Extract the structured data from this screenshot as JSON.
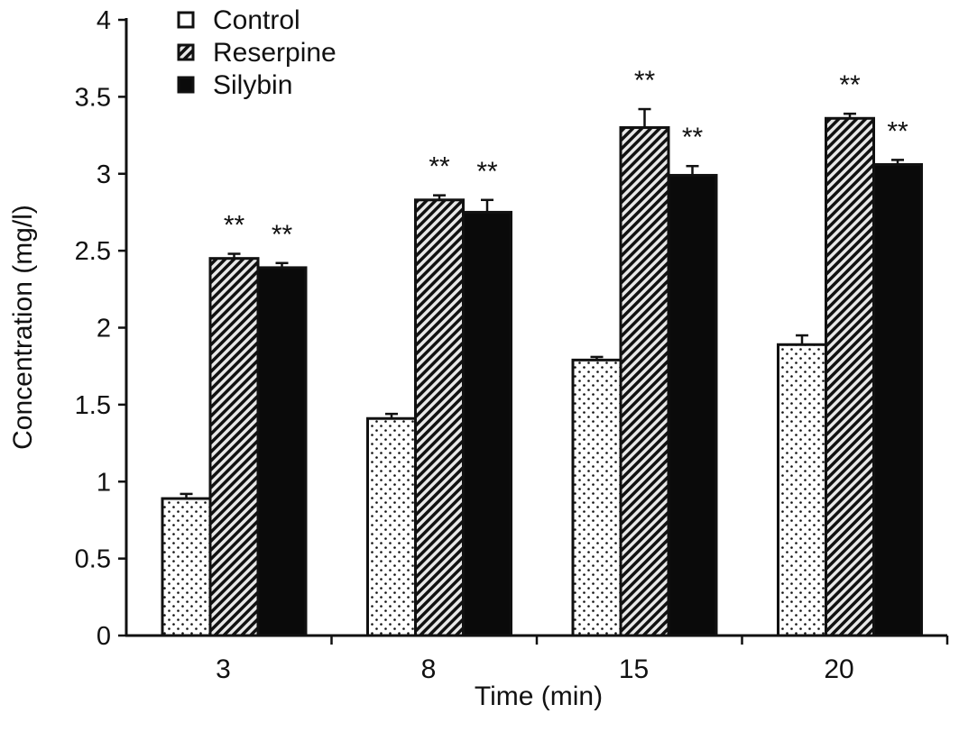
{
  "chart_data": {
    "type": "bar",
    "title": "",
    "xlabel": "Time (min)",
    "ylabel": "Concentration (mg/l)",
    "ylim": [
      0,
      4
    ],
    "yticks": [
      "0",
      "0.5",
      "1",
      "1.5",
      "2",
      "2.5",
      "3",
      "3.5",
      "4"
    ],
    "categories": [
      "3",
      "8",
      "15",
      "20"
    ],
    "legend_position": "top-left",
    "series": [
      {
        "name": "Control",
        "pattern": "dots",
        "values": [
          0.89,
          1.41,
          1.79,
          1.89
        ],
        "errors": [
          0.03,
          0.03,
          0.02,
          0.06
        ],
        "annotations": [
          "",
          "",
          "",
          ""
        ]
      },
      {
        "name": "Reserpine",
        "pattern": "diagonal-hatch",
        "values": [
          2.45,
          2.83,
          3.3,
          3.36
        ],
        "errors": [
          0.03,
          0.03,
          0.12,
          0.03
        ],
        "annotations": [
          "**",
          "**",
          "**",
          "**"
        ]
      },
      {
        "name": "Silybin",
        "pattern": "solid-black",
        "values": [
          2.39,
          2.75,
          2.99,
          3.06
        ],
        "errors": [
          0.03,
          0.08,
          0.06,
          0.03
        ],
        "annotations": [
          "**",
          "**",
          "**",
          "**"
        ]
      }
    ],
    "colors": {
      "axis": "#111111",
      "solid": "#0a0a0a",
      "background": "#ffffff"
    }
  }
}
